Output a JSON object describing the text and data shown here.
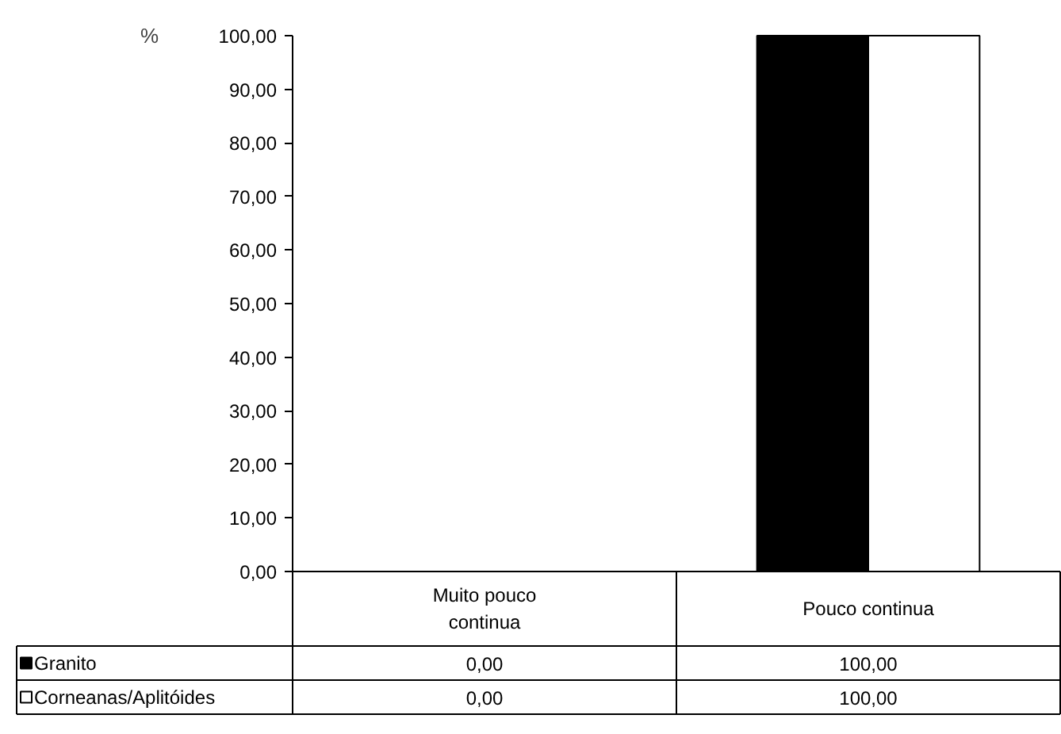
{
  "chart_data": {
    "type": "bar",
    "ylabel": "%",
    "categories": [
      "Muito pouco\ncontinua",
      "Pouco continua"
    ],
    "series": [
      {
        "name": "Granito",
        "color": "#000000",
        "values": [
          0,
          100
        ]
      },
      {
        "name": "Corneanas/Aplitóides",
        "color": "#ffffff",
        "values": [
          0,
          100
        ]
      }
    ],
    "ylim": [
      0,
      100
    ],
    "yticks": [
      {
        "value": 0,
        "label": "0,00"
      },
      {
        "value": 10,
        "label": "10,00"
      },
      {
        "value": 20,
        "label": "20,00"
      },
      {
        "value": 30,
        "label": "30,00"
      },
      {
        "value": 40,
        "label": "40,00"
      },
      {
        "value": 50,
        "label": "50,00"
      },
      {
        "value": 60,
        "label": "60,00"
      },
      {
        "value": 70,
        "label": "70,00"
      },
      {
        "value": 80,
        "label": "80,00"
      },
      {
        "value": 90,
        "label": "90,00"
      },
      {
        "value": 100,
        "label": "100,00"
      }
    ],
    "value_labels": [
      [
        "0,00",
        "100,00"
      ],
      [
        "0,00",
        "100,00"
      ]
    ],
    "grid": false,
    "legend": "bottom"
  }
}
